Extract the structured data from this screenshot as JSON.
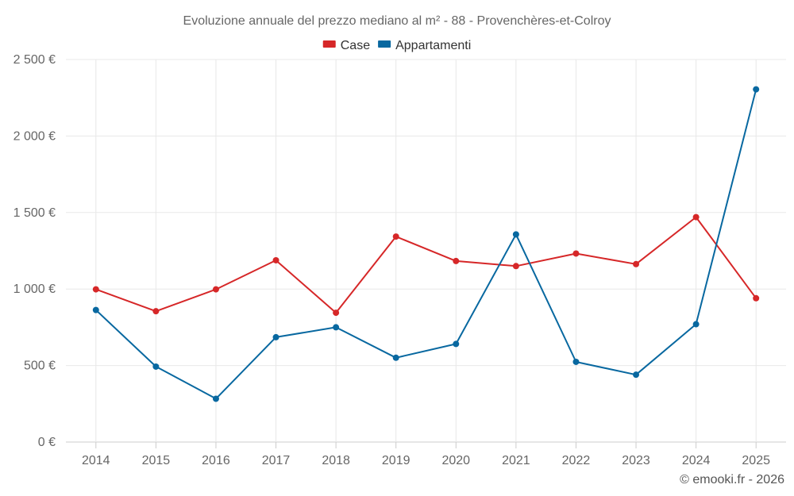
{
  "chart_data": {
    "type": "line",
    "title": "Evoluzione annuale del prezzo mediano al m² - 88 - Provenchères-et-Colroy",
    "categories": [
      "2014",
      "2015",
      "2016",
      "2017",
      "2018",
      "2019",
      "2020",
      "2021",
      "2022",
      "2023",
      "2024",
      "2025"
    ],
    "series": [
      {
        "name": "Case",
        "color": "#d62728",
        "values": [
          998,
          855,
          998,
          1188,
          845,
          1343,
          1183,
          1150,
          1232,
          1163,
          1470,
          940
        ]
      },
      {
        "name": "Appartamenti",
        "color": "#0868a0",
        "values": [
          863,
          493,
          283,
          685,
          750,
          551,
          641,
          1357,
          524,
          440,
          770,
          2305
        ]
      }
    ],
    "ylim": [
      0,
      2500
    ],
    "yticks": [
      0,
      500,
      1000,
      1500,
      2000,
      2500
    ],
    "ytick_labels": [
      "0 €",
      "500 €",
      "1 000 €",
      "1 500 €",
      "2 000 €",
      "2 500 €"
    ],
    "xlabel": "",
    "ylabel": "",
    "legend_position": "top-center",
    "grid": true
  },
  "credit": "© emooki.fr - 2026"
}
